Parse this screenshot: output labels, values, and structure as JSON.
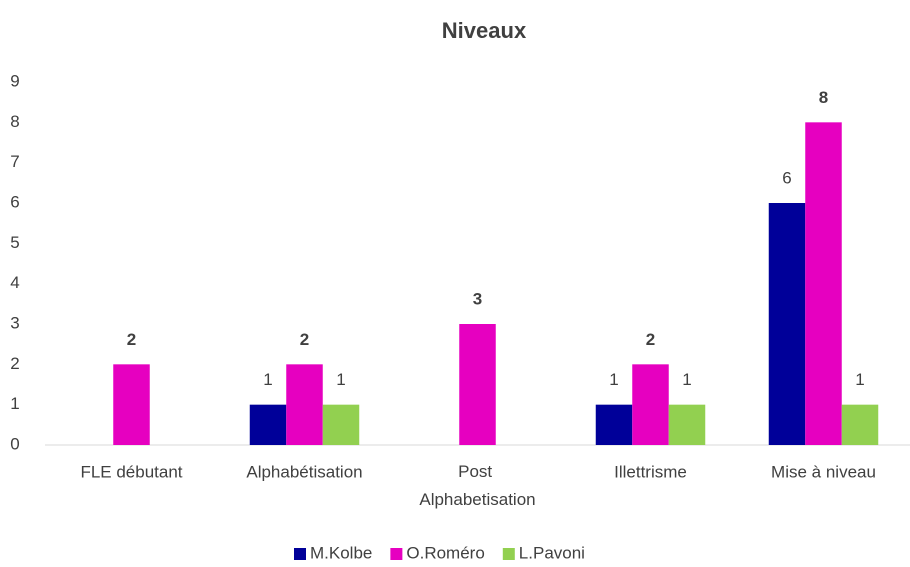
{
  "chart_data": {
    "type": "bar",
    "title": "Niveaux",
    "categories": [
      "FLE débutant",
      "Alphabétisation",
      "Post Alphabetisation",
      "Illettrisme",
      "Mise à niveau"
    ],
    "series": [
      {
        "name": "M.Kolbe",
        "color": "#000099",
        "values": [
          null,
          1,
          null,
          1,
          6
        ]
      },
      {
        "name": "O.Roméro",
        "color": "#e600c0",
        "values": [
          2,
          2,
          3,
          2,
          8
        ]
      },
      {
        "name": "L.Pavoni",
        "color": "#92d050",
        "values": [
          null,
          1,
          null,
          1,
          1
        ]
      }
    ],
    "ylim": [
      0,
      9
    ],
    "yticks": [
      0,
      1,
      2,
      3,
      4,
      5,
      6,
      7,
      8,
      9
    ],
    "grid": false,
    "legend": "bottom"
  }
}
